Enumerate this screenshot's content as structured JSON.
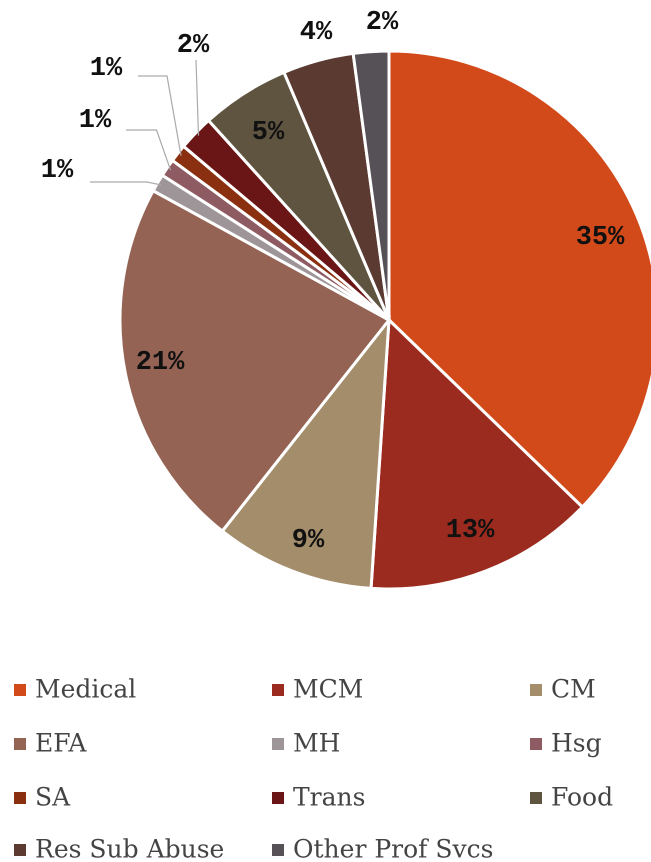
{
  "chart_data": {
    "type": "pie",
    "categories": [
      "Medical",
      "MCM",
      "CM",
      "EFA",
      "MH",
      "Hsg",
      "SA",
      "Trans",
      "Food",
      "Res Sub Abuse",
      "Other Prof Svcs"
    ],
    "values": [
      35,
      13,
      9,
      21,
      1,
      1,
      1,
      2,
      5,
      4,
      2
    ],
    "value_labels": [
      "35%",
      "13%",
      "9%",
      "21%",
      "1%",
      "1%",
      "1%",
      "2%",
      "5%",
      "4%",
      "2%"
    ],
    "colors": [
      "#d2491a",
      "#9c2b1f",
      "#a38d6b",
      "#946353",
      "#9e9598",
      "#8e5b63",
      "#8a2f10",
      "#6a1616",
      "#5f5440",
      "#5b3b31",
      "#565157"
    ],
    "legend": "bottom"
  }
}
